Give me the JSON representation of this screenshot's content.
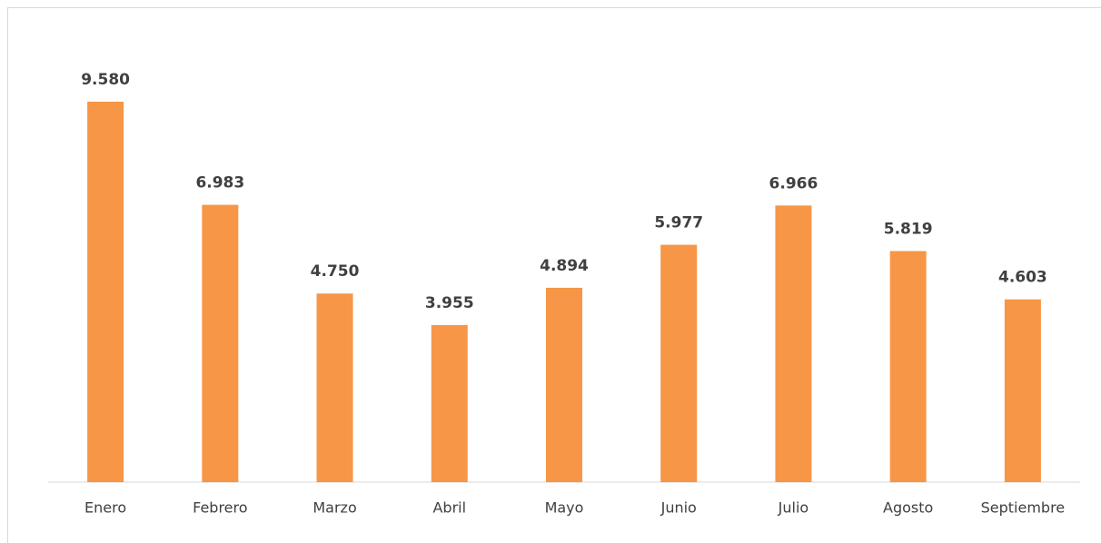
{
  "chart_data": {
    "type": "bar",
    "categories": [
      "Enero",
      "Febrero",
      "Marzo",
      "Abril",
      "Mayo",
      "Junio",
      "Julio",
      "Agosto",
      "Septiembre"
    ],
    "values": [
      9580,
      6983,
      4750,
      3955,
      4894,
      5977,
      6966,
      5819,
      4603
    ],
    "value_labels": [
      "9.580",
      "6.983",
      "4.750",
      "3.955",
      "4.894",
      "5.977",
      "6.966",
      "5.819",
      "4.603"
    ],
    "color": "#f79646"
  }
}
